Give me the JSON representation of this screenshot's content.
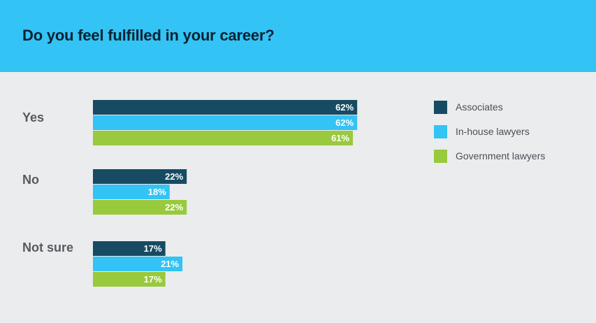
{
  "title": "Do you feel fulfilled in your career?",
  "chart_data": {
    "type": "bar",
    "orientation": "horizontal",
    "title": "Do you feel fulfilled in your career?",
    "categories": [
      "Yes",
      "No",
      "Not sure"
    ],
    "series": [
      {
        "name": "Associates",
        "color": "#174b63",
        "values": [
          62,
          22,
          17
        ],
        "labels": [
          "62%",
          "22%",
          "17%"
        ]
      },
      {
        "name": "In-house lawyers",
        "color": "#33c3f4",
        "values": [
          62,
          18,
          21
        ],
        "labels": [
          "62%",
          "18%",
          "21%"
        ]
      },
      {
        "name": "Government lawyers",
        "color": "#99c93c",
        "values": [
          61,
          22,
          17
        ],
        "labels": [
          "61%",
          "22%",
          "17%"
        ]
      }
    ],
    "unit": "%",
    "xlim": [
      0,
      100
    ],
    "grid": false,
    "legend_position": "right"
  }
}
